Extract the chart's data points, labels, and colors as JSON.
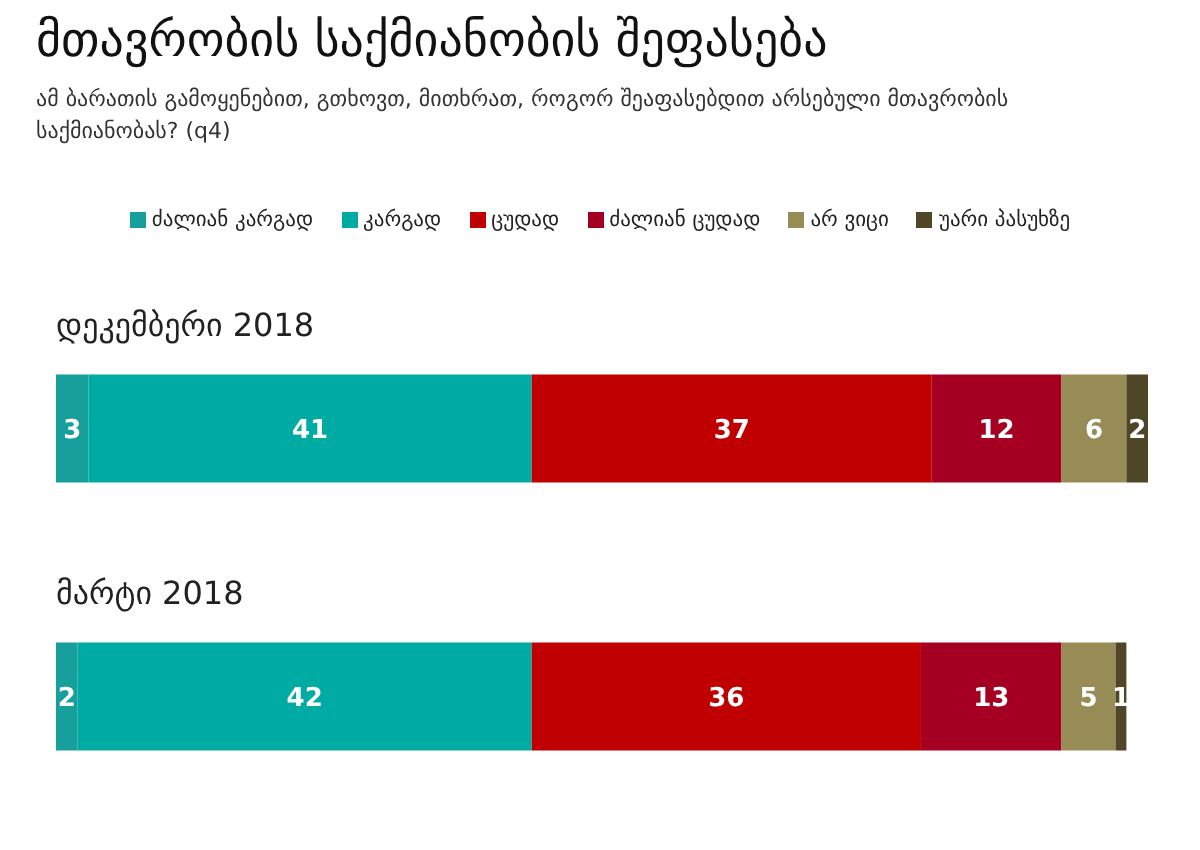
{
  "chart_data": {
    "type": "bar",
    "orientation": "horizontal",
    "stacked": true,
    "title": "მთავრობის საქმიანობის შეფასება",
    "subtitle": "ამ ბარათის გამოყენებით, გთხოვთ, მითხრათ, როგორ შეაფასებდით არსებული მთავრობის საქმიანობას? (q4)",
    "categories": [
      "დეკემბერი 2018",
      "მარტი 2018"
    ],
    "series": [
      {
        "name": "ძალიან კარგად",
        "color": "#17a09b",
        "values": [
          3,
          2
        ]
      },
      {
        "name": "კარგად",
        "color": "#00aba3",
        "values": [
          41,
          42
        ]
      },
      {
        "name": "ცუდად",
        "color": "#c00000",
        "values": [
          37,
          36
        ]
      },
      {
        "name": "ძალიან ცუდად",
        "color": "#a50021",
        "values": [
          12,
          13
        ]
      },
      {
        "name": "არ ვიცი",
        "color": "#978c55",
        "values": [
          6,
          5
        ]
      },
      {
        "name": "უარი პასუხზე",
        "color": "#4f4628",
        "values": [
          2,
          1
        ]
      }
    ],
    "xlim": [
      0,
      101
    ],
    "data_labels": true,
    "legend": "top",
    "tick_labels": "y",
    "grid": false
  }
}
